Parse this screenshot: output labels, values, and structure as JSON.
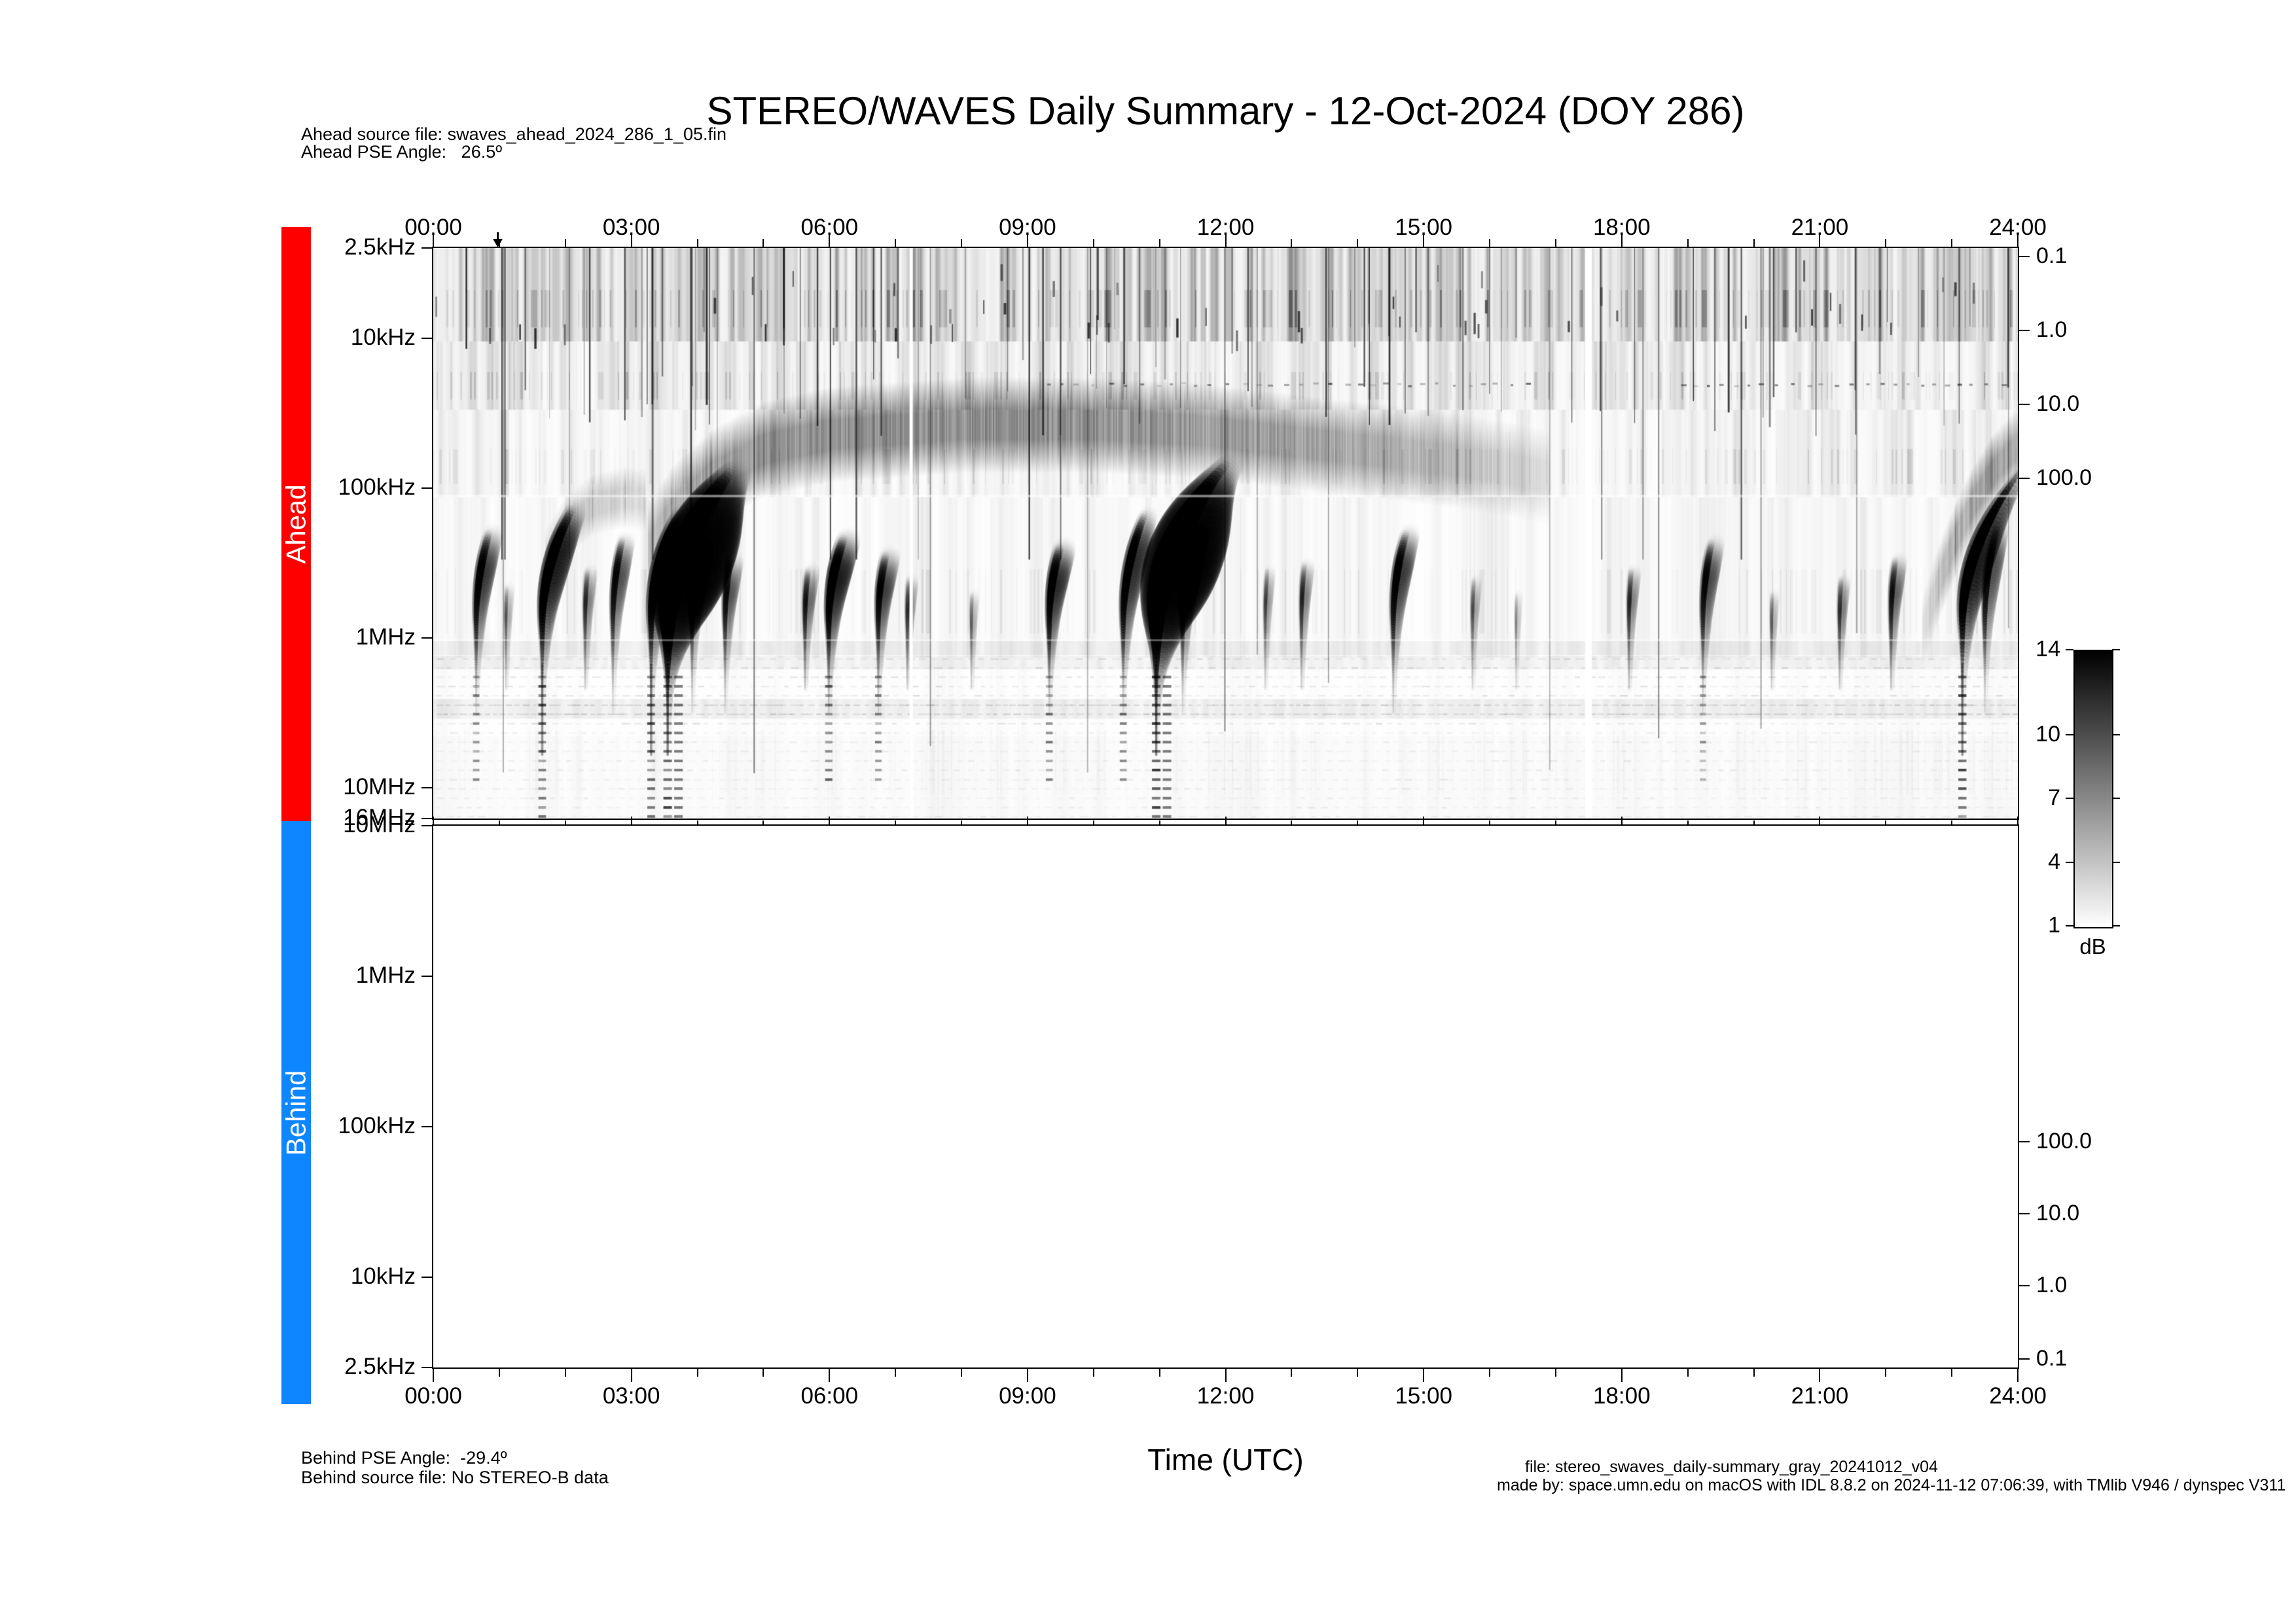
{
  "window": {
    "title": "STEREO/WAVES Daily Summary - 12-Oct-2024 (DOY 286)"
  },
  "header": {
    "ahead_source_file": "Ahead source file: swaves_ahead_2024_286_1_05.fin",
    "ahead_pse_angle": "Ahead PSE Angle:   26.5º"
  },
  "footer": {
    "behind_pse_angle": "Behind PSE Angle:  -29.4º",
    "behind_source_file": "Behind source file: No STEREO-B data",
    "x_axis_title": "Time (UTC)",
    "file_note": "file: stereo_swaves_daily-summary_gray_20241012_v04",
    "made_by_note": "made by: space.umn.edu on macOS with IDL 8.8.2 on 2024-11-12 07:06:39, with TMlib V946 / dynspec V311"
  },
  "sidebar": {
    "ahead_label": "Ahead",
    "ahead_color": "#ff0000",
    "behind_label": "Behind",
    "behind_color": "#0d86ff"
  },
  "time_axis": {
    "tick_labels": [
      "00:00",
      "03:00",
      "06:00",
      "09:00",
      "12:00",
      "15:00",
      "18:00",
      "21:00",
      "24:00"
    ],
    "hours_span": 24,
    "minor_tick_every_hours": 1,
    "major_tick_every_hours": 3
  },
  "ahead_panel": {
    "freq_tick_labels": [
      "2.5kHz",
      "10kHz",
      "100kHz",
      "1MHz",
      "10MHz",
      "16MHz"
    ],
    "right_tick_labels": [
      "0.1",
      "1.0",
      "10.0",
      "100.0"
    ]
  },
  "behind_panel": {
    "freq_tick_labels": [
      "10MHz",
      "1MHz",
      "100kHz",
      "10kHz",
      "2.5kHz"
    ],
    "right_tick_labels": [
      "100.0",
      "10.0",
      "1.0",
      "0.1"
    ],
    "status": "no data"
  },
  "colorbar": {
    "tick_labels": [
      "14",
      "10",
      "7",
      "4",
      "1"
    ],
    "min_db": 1,
    "max_db": 14,
    "unit": "dB",
    "top_color": "#000000",
    "bottom_color": "#ffffff"
  },
  "chart_data": {
    "type": "heatmap",
    "subtype": "dynamic radio spectrogram (two stacked panels)",
    "title": "STEREO/WAVES Daily Summary - 12-Oct-2024 (DOY 286)",
    "x": {
      "label": "Time (UTC)",
      "range_hours": [
        0,
        24
      ],
      "tick_labels": [
        "00:00",
        "03:00",
        "06:00",
        "09:00",
        "12:00",
        "15:00",
        "18:00",
        "21:00",
        "24:00"
      ]
    },
    "y_ahead": {
      "label": "frequency",
      "scale": "log",
      "top": "2.5 kHz",
      "bottom": "16 MHz"
    },
    "y_behind": {
      "label": "frequency",
      "scale": "log",
      "top": "10 MHz",
      "bottom": "2.5 kHz"
    },
    "z": {
      "label": "intensity",
      "unit": "dB",
      "range": [
        1,
        14
      ],
      "colormap": "grayscale, white = 1 dB, black = 14 dB"
    },
    "event_marker_utc": "00:58",
    "data_gaps_utc": [
      "07:14",
      "17:28"
    ],
    "type_iii_bursts": [
      {
        "utc": "00:39",
        "t_hours": 0.65,
        "intensity_db": 9,
        "min_freq_kHz": 200,
        "reaches_hf_band": true,
        "broad": false
      },
      {
        "utc": "01:06",
        "t_hours": 1.1,
        "intensity_db": 5,
        "min_freq_kHz": 450,
        "reaches_hf_band": false,
        "broad": false
      },
      {
        "utc": "01:39",
        "t_hours": 1.65,
        "intensity_db": 12,
        "min_freq_kHz": 140,
        "reaches_hf_band": true,
        "broad": false
      },
      {
        "utc": "02:18",
        "t_hours": 2.3,
        "intensity_db": 6,
        "min_freq_kHz": 350,
        "reaches_hf_band": false,
        "broad": false
      },
      {
        "utc": "02:43",
        "t_hours": 2.72,
        "intensity_db": 8,
        "min_freq_kHz": 220,
        "reaches_hf_band": false,
        "broad": false
      },
      {
        "utc": "03:18",
        "t_hours": 3.3,
        "intensity_db": 12,
        "min_freq_kHz": 150,
        "reaches_hf_band": true,
        "broad": false
      },
      {
        "utc": "03:33",
        "t_hours": 3.55,
        "intensity_db": 14,
        "min_freq_kHz": 80,
        "reaches_hf_band": true,
        "broad": true
      },
      {
        "utc": "03:55",
        "t_hours": 3.92,
        "intensity_db": 8,
        "min_freq_kHz": 250,
        "reaches_hf_band": false,
        "broad": false
      },
      {
        "utc": "04:25",
        "t_hours": 4.42,
        "intensity_db": 8,
        "min_freq_kHz": 300,
        "reaches_hf_band": false,
        "broad": false
      },
      {
        "utc": "05:38",
        "t_hours": 5.63,
        "intensity_db": 7,
        "min_freq_kHz": 350,
        "reaches_hf_band": false,
        "broad": false
      },
      {
        "utc": "05:59",
        "t_hours": 5.99,
        "intensity_db": 11,
        "min_freq_kHz": 220,
        "reaches_hf_band": true,
        "broad": false
      },
      {
        "utc": "06:44",
        "t_hours": 6.74,
        "intensity_db": 9,
        "min_freq_kHz": 280,
        "reaches_hf_band": true,
        "broad": false
      },
      {
        "utc": "07:11",
        "t_hours": 7.18,
        "intensity_db": 6,
        "min_freq_kHz": 400,
        "reaches_hf_band": false,
        "broad": false
      },
      {
        "utc": "08:09",
        "t_hours": 8.15,
        "intensity_db": 5,
        "min_freq_kHz": 500,
        "reaches_hf_band": false,
        "broad": false
      },
      {
        "utc": "09:20",
        "t_hours": 9.33,
        "intensity_db": 10,
        "min_freq_kHz": 250,
        "reaches_hf_band": true,
        "broad": false
      },
      {
        "utc": "10:27",
        "t_hours": 10.45,
        "intensity_db": 10,
        "min_freq_kHz": 150,
        "reaches_hf_band": true,
        "broad": false
      },
      {
        "utc": "10:57",
        "t_hours": 10.95,
        "intensity_db": 14,
        "min_freq_kHz": 70,
        "reaches_hf_band": true,
        "broad": true
      },
      {
        "utc": "11:21",
        "t_hours": 11.35,
        "intensity_db": 9,
        "min_freq_kHz": 200,
        "reaches_hf_band": false,
        "broad": false
      },
      {
        "utc": "12:36",
        "t_hours": 12.6,
        "intensity_db": 5,
        "min_freq_kHz": 350,
        "reaches_hf_band": false,
        "broad": false
      },
      {
        "utc": "13:09",
        "t_hours": 13.15,
        "intensity_db": 6,
        "min_freq_kHz": 320,
        "reaches_hf_band": false,
        "broad": false
      },
      {
        "utc": "14:32",
        "t_hours": 14.54,
        "intensity_db": 9,
        "min_freq_kHz": 200,
        "reaches_hf_band": false,
        "broad": false
      },
      {
        "utc": "15:44",
        "t_hours": 15.74,
        "intensity_db": 5,
        "min_freq_kHz": 400,
        "reaches_hf_band": false,
        "broad": false
      },
      {
        "utc": "16:24",
        "t_hours": 16.4,
        "intensity_db": 4,
        "min_freq_kHz": 500,
        "reaches_hf_band": false,
        "broad": false
      },
      {
        "utc": "18:07",
        "t_hours": 18.11,
        "intensity_db": 6,
        "min_freq_kHz": 350,
        "reaches_hf_band": false,
        "broad": false
      },
      {
        "utc": "19:14",
        "t_hours": 19.23,
        "intensity_db": 8,
        "min_freq_kHz": 230,
        "reaches_hf_band": true,
        "broad": false
      },
      {
        "utc": "20:16",
        "t_hours": 20.27,
        "intensity_db": 5,
        "min_freq_kHz": 500,
        "reaches_hf_band": false,
        "broad": false
      },
      {
        "utc": "21:18",
        "t_hours": 21.3,
        "intensity_db": 6,
        "min_freq_kHz": 400,
        "reaches_hf_band": false,
        "broad": false
      },
      {
        "utc": "22:05",
        "t_hours": 22.08,
        "intensity_db": 7,
        "min_freq_kHz": 300,
        "reaches_hf_band": false,
        "broad": false
      },
      {
        "utc": "23:10",
        "t_hours": 23.16,
        "intensity_db": 13,
        "min_freq_kHz": 70,
        "reaches_hf_band": true,
        "broad": false
      },
      {
        "utc": "23:30",
        "t_hours": 23.5,
        "intensity_db": 8,
        "min_freq_kHz": 180,
        "reaches_hf_band": false,
        "broad": false
      }
    ],
    "type_iii_storm_band": {
      "utc_start": "03:15",
      "utc_end": "17:00",
      "freq_range_kHz": [
        30,
        260
      ],
      "path_t_hours_vs_kHz": [
        [
          3.25,
          260
        ],
        [
          3.6,
          150
        ],
        [
          4.2,
          85
        ],
        [
          5.0,
          55
        ],
        [
          6.0,
          44
        ],
        [
          8.0,
          38
        ],
        [
          10.0,
          38
        ],
        [
          11.5,
          41
        ],
        [
          12.5,
          46
        ],
        [
          13.5,
          52
        ],
        [
          14.5,
          58
        ],
        [
          15.5,
          66
        ],
        [
          16.3,
          75
        ],
        [
          16.9,
          85
        ]
      ],
      "description": "diffuse low-frequency storm continuum drifting from ~260 kHz at 03:20 down to ~40 kHz, fading before the 17:30 data gap"
    },
    "early_plume_path_t_hours_vs_kHz": [
      [
        1.7,
        300
      ],
      [
        2.0,
        180
      ],
      [
        2.4,
        130
      ],
      [
        2.9,
        115
      ],
      [
        3.2,
        120
      ]
    ],
    "late_envelope_path_t_hours_vs_kHz": [
      [
        22.55,
        900
      ],
      [
        22.8,
        420
      ],
      [
        23.05,
        220
      ],
      [
        23.3,
        130
      ],
      [
        23.6,
        80
      ],
      [
        23.85,
        60
      ],
      [
        24.0,
        52
      ]
    ],
    "rfi_channel_rows_MHz": [
      1.38,
      1.58,
      1.82,
      2.1,
      2.42,
      2.8,
      3.22,
      3.72,
      4.3,
      4.95,
      5.7,
      6.6,
      7.6,
      8.8,
      10.1,
      11.7,
      13.5,
      15.5
    ],
    "lf_dot_row_20kHz_utc_ranges": [
      [
        9.3,
        16.6
      ],
      [
        18.9,
        23.8
      ]
    ],
    "behind_panel_data": "none (No STEREO-B data)"
  }
}
